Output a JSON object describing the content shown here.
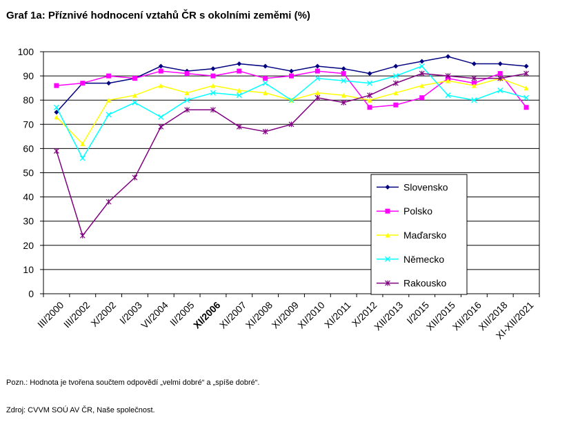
{
  "title": "Graf 1a: Příznivé hodnocení vztahů ČR s okolními zeměmi (%)",
  "note": "Pozn.: Hodnota je tvořena součtem odpovědí „velmi dobré“ a „spíše dobré“.",
  "source": "Zdroj: CVVM SOÚ AV ČR, Naše společnost.",
  "chart_data": {
    "type": "line",
    "title": "Graf 1a: Příznivé hodnocení vztahů ČR s okolními zeměmi (%)",
    "xlabel": "",
    "ylabel": "",
    "ylim": [
      0,
      100
    ],
    "yticks": [
      0,
      10,
      20,
      30,
      40,
      50,
      60,
      70,
      80,
      90,
      100
    ],
    "grid": true,
    "legend_position": "bottom-right",
    "categories": [
      "III/2000",
      "III/2002",
      "X/2002",
      "I/2003",
      "VI/2004",
      "II/2005",
      "XI/2006",
      "XI/2007",
      "XI/2008",
      "XI/2009",
      "XI/2010",
      "XI/2011",
      "X/2012",
      "XII/2013",
      "I/2015",
      "XII/2015",
      "XII/2016",
      "XII/2018",
      "XI-XII/2021"
    ],
    "categories_bold": [
      "XI/2006"
    ],
    "x": [
      0,
      1,
      2,
      3,
      4,
      5,
      6,
      7,
      8,
      9,
      10,
      11,
      12,
      13,
      14,
      15,
      16,
      17,
      18
    ],
    "series": [
      {
        "name": "Slovensko",
        "color": "#000080",
        "marker": "diamond",
        "values": [
          75,
          87,
          87,
          89,
          94,
          92,
          93,
          95,
          94,
          92,
          94,
          93,
          91,
          94,
          96,
          98,
          95,
          95,
          94
        ]
      },
      {
        "name": "Polsko",
        "color": "#ff00ff",
        "marker": "square",
        "values": [
          86,
          87,
          90,
          89,
          92,
          91,
          90,
          92,
          89,
          90,
          92,
          91,
          77,
          78,
          81,
          89,
          87,
          91,
          77
        ]
      },
      {
        "name": "Maďarsko",
        "color": "#ffff00",
        "marker": "triangle",
        "values": [
          73,
          62,
          80,
          82,
          86,
          83,
          86,
          84,
          83,
          80,
          83,
          82,
          80,
          83,
          86,
          88,
          86,
          89,
          85
        ]
      },
      {
        "name": "Německo",
        "color": "#00ffff",
        "marker": "x",
        "values": [
          77,
          56,
          74,
          79,
          73,
          80,
          83,
          82,
          87,
          80,
          89,
          88,
          87,
          90,
          94,
          82,
          80,
          84,
          81
        ]
      },
      {
        "name": "Rakousko",
        "color": "#800080",
        "marker": "star",
        "values": [
          59,
          24,
          38,
          48,
          69,
          76,
          76,
          69,
          67,
          70,
          81,
          79,
          82,
          87,
          91,
          90,
          89,
          89,
          91
        ]
      }
    ]
  }
}
